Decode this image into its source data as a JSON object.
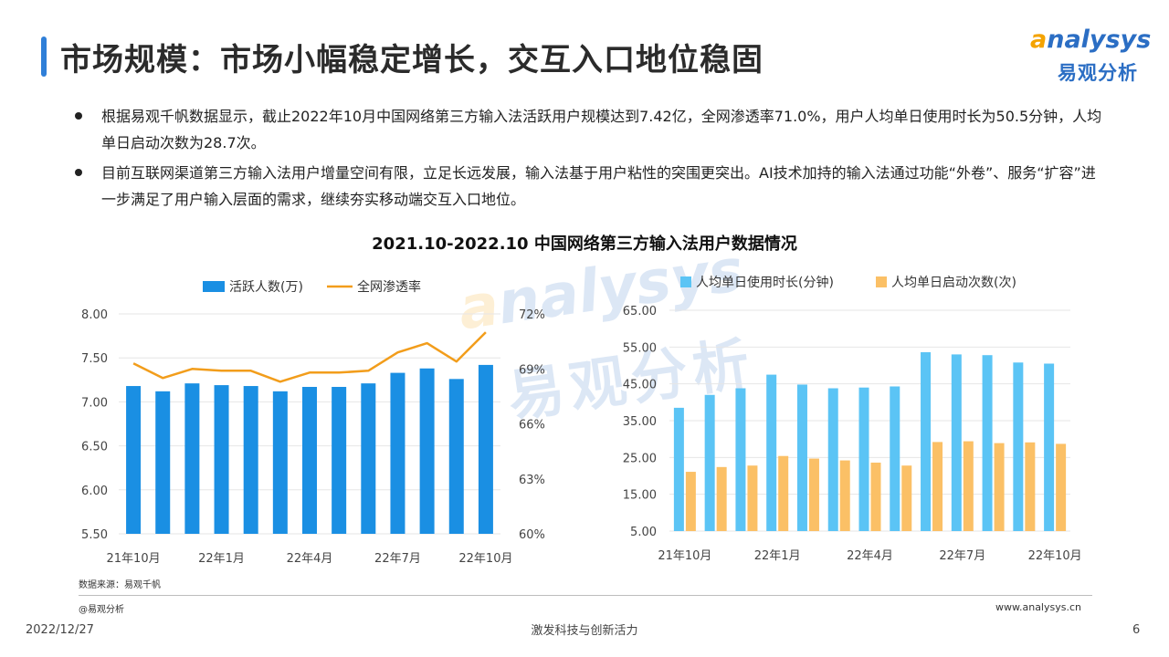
{
  "page": {
    "title": "市场规模：市场小幅稳定增长，交互入口地位稳固",
    "logo_en_cap": "a",
    "logo_en_rest": "nalysys",
    "logo_cn": "易观分析",
    "bullets": [
      "根据易观千帆数据显示，截止2022年10月中国网络第三方输入法活跃用户规模达到7.42亿，全网渗透率71.0%，用户人均单日使用时长为50.5分钟，人均单日启动次数为28.7次。",
      "目前互联网渠道第三方输入法用户增量空间有限，立足长远发展，输入法基于用户粘性的突围更突出。AI技术加持的输入法通过功能“外卷”、服务“扩容”进一步满足了用户输入层面的需求，继续夯实移动端交互入口地位。"
    ],
    "chart_title": "2021.10-2022.10 中国网络第三方输入法用户数据情况",
    "source": "数据来源：易观千帆",
    "credit": "@易观分析",
    "website": "www.analysys.cn",
    "date": "2022/12/27",
    "slogan": "激发科技与创新活力",
    "page_number": "6"
  },
  "chart_data": [
    {
      "type": "bar+line",
      "categories": [
        "21年10月",
        "21年11月",
        "21年12月",
        "22年1月",
        "22年2月",
        "22年3月",
        "22年4月",
        "22年5月",
        "22年6月",
        "22年7月",
        "22年8月",
        "22年9月",
        "22年10月"
      ],
      "x_tick_labels": [
        "21年10月",
        "",
        "",
        "22年1月",
        "",
        "",
        "22年4月",
        "",
        "",
        "22年7月",
        "",
        "",
        "22年10月"
      ],
      "series": [
        {
          "name": "活跃人数(万)",
          "type": "bar",
          "axis": "left",
          "color": "#1a8fe3",
          "values": [
            7.18,
            7.12,
            7.21,
            7.19,
            7.18,
            7.12,
            7.17,
            7.17,
            7.21,
            7.33,
            7.38,
            7.26,
            7.42
          ]
        },
        {
          "name": "全网渗透率",
          "type": "line",
          "axis": "right",
          "color": "#f29d1b",
          "values": [
            69.3,
            68.5,
            69.0,
            68.9,
            68.9,
            68.3,
            68.8,
            68.8,
            68.9,
            69.9,
            70.4,
            69.4,
            71.0
          ]
        }
      ],
      "y_left": {
        "min": 5.5,
        "max": 8.0,
        "ticks": [
          "8.00",
          "7.50",
          "7.00",
          "6.50",
          "6.00",
          "5.50"
        ]
      },
      "y_right": {
        "min": 60,
        "max": 72,
        "ticks": [
          "72%",
          "69%",
          "66%",
          "63%",
          "60%"
        ]
      },
      "grid": true,
      "legend": "top-center"
    },
    {
      "type": "bar",
      "categories": [
        "21年10月",
        "21年11月",
        "21年12月",
        "22年1月",
        "22年2月",
        "22年3月",
        "22年4月",
        "22年5月",
        "22年6月",
        "22年7月",
        "22年8月",
        "22年9月",
        "22年10月"
      ],
      "x_tick_labels": [
        "21年10月",
        "",
        "",
        "22年1月",
        "",
        "",
        "22年4月",
        "",
        "",
        "22年7月",
        "",
        "",
        "22年10月"
      ],
      "series": [
        {
          "name": "人均单日使用时长(分钟)",
          "color": "#5bc4f5",
          "values": [
            38.5,
            42.0,
            43.8,
            47.5,
            44.8,
            43.8,
            44.0,
            44.3,
            53.6,
            53.0,
            52.8,
            50.8,
            50.5
          ]
        },
        {
          "name": "人均单日启动次数(次)",
          "color": "#fbc066",
          "values": [
            21.1,
            22.4,
            22.8,
            25.4,
            24.7,
            24.2,
            23.6,
            22.8,
            29.2,
            29.4,
            28.9,
            29.1,
            28.7
          ]
        }
      ],
      "y": {
        "min": 5,
        "max": 65,
        "ticks": [
          "65.00",
          "55.00",
          "45.00",
          "35.00",
          "25.00",
          "15.00",
          "5.00"
        ]
      },
      "grid": true,
      "legend": "top-center"
    }
  ]
}
